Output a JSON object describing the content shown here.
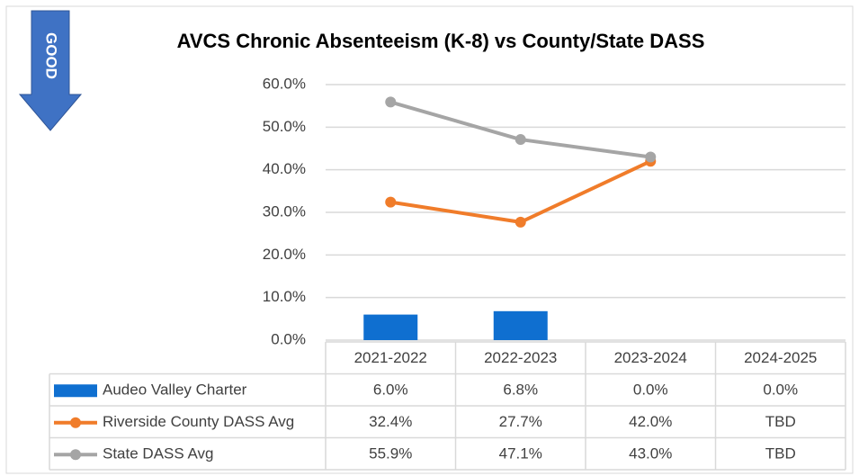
{
  "chart_data": {
    "type": "combo",
    "title": "AVCS Chronic Absenteeism (K-8) vs County/State DASS",
    "annotation": "GOOD",
    "categories": [
      "2021-2022",
      "2022-2023",
      "2023-2024",
      "2024-2025"
    ],
    "series": [
      {
        "name": "Audeo Valley Charter",
        "type": "bar",
        "color": "#0f6fd0",
        "values": [
          6.0,
          6.8,
          0.0,
          0.0
        ],
        "value_labels": [
          "6.0%",
          "6.8%",
          "0.0%",
          "0.0%"
        ]
      },
      {
        "name": "Riverside County DASS Avg",
        "type": "line",
        "color": "#f07c2a",
        "values": [
          32.4,
          27.7,
          42.0,
          null
        ],
        "value_labels": [
          "32.4%",
          "27.7%",
          "42.0%",
          "TBD"
        ]
      },
      {
        "name": "State DASS Avg",
        "type": "line",
        "color": "#a5a5a5",
        "values": [
          55.9,
          47.1,
          43.0,
          null
        ],
        "value_labels": [
          "55.9%",
          "47.1%",
          "43.0%",
          "TBD"
        ]
      }
    ],
    "ylim": [
      0,
      60
    ],
    "yticks": [
      {
        "value": 0,
        "label": "0.0%"
      },
      {
        "value": 10,
        "label": "10.0%"
      },
      {
        "value": 20,
        "label": "20.0%"
      },
      {
        "value": 30,
        "label": "30.0%"
      },
      {
        "value": 40,
        "label": "40.0%"
      },
      {
        "value": 50,
        "label": "50.0%"
      },
      {
        "value": 60,
        "label": "60.0%"
      }
    ],
    "grid": true
  }
}
